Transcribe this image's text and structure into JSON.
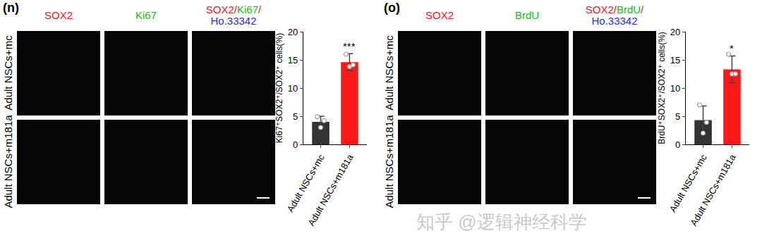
{
  "chart_data": [
    {
      "type": "bar",
      "categories": [
        "Adult NSCs+mc",
        "Adult NSCs+m181a"
      ],
      "values": [
        4.0,
        14.6
      ],
      "errors": [
        1.0,
        1.5
      ],
      "points": [
        [
          4.9,
          3.0,
          4.2
        ],
        [
          16.0,
          13.8,
          14.1
        ]
      ],
      "colors": [
        "#333333",
        "#ff1a1a"
      ],
      "y_label": "Ki67⁺SOX2⁺/SOX2⁺ cells(%)",
      "ylim": [
        0,
        20
      ],
      "yticks": [
        0,
        5,
        10,
        15,
        20
      ],
      "annotations": [
        {
          "category": 1,
          "text": "***"
        }
      ]
    },
    {
      "type": "bar",
      "categories": [
        "Adult NSCs+mc",
        "Adult NSCs+m181a"
      ],
      "values": [
        4.3,
        13.3
      ],
      "errors": [
        2.5,
        2.4
      ],
      "points": [
        [
          7.0,
          2.0,
          3.9
        ],
        [
          16.0,
          12.5,
          12.5
        ]
      ],
      "colors": [
        "#333333",
        "#ff1a1a"
      ],
      "y_label": "BrdU⁺SOX2⁺/SOX2⁺ cells(%)",
      "ylim": [
        0,
        20
      ],
      "yticks": [
        0,
        5,
        10,
        15,
        20
      ],
      "annotations": [
        {
          "category": 1,
          "text": "*"
        }
      ]
    }
  ],
  "panels": [
    {
      "label": "(n)",
      "rows": [
        "Adult NSCs+mc",
        "Adult NSCs+m181a"
      ],
      "columns": [
        [
          [
            {
              "text": "SOX2",
              "color": "#e8202a"
            }
          ]
        ],
        [
          [
            {
              "text": "Ki67",
              "color": "#22b822"
            }
          ]
        ],
        [
          [
            {
              "text": "SOX2/",
              "color": "#e8202a"
            },
            {
              "text": "Ki67",
              "color": "#22b822"
            },
            {
              "text": "/",
              "color": "#e8202a"
            }
          ],
          [
            {
              "text": "Ho.33342",
              "color": "#2f2fc8"
            }
          ]
        ]
      ]
    },
    {
      "label": "(o)",
      "rows": [
        "Adult NSCs+mc",
        "Adult NSCs+m181a"
      ],
      "columns": [
        [
          [
            {
              "text": "SOX2",
              "color": "#e8202a"
            }
          ]
        ],
        [
          [
            {
              "text": "BrdU",
              "color": "#22b822"
            }
          ]
        ],
        [
          [
            {
              "text": "SOX2/",
              "color": "#e8202a"
            },
            {
              "text": "BrdU",
              "color": "#22b822"
            },
            {
              "text": "/",
              "color": "#e8202a"
            }
          ],
          [
            {
              "text": "Ho.33342",
              "color": "#2f2fc8"
            }
          ]
        ]
      ]
    }
  ],
  "watermark": "知乎 @逻辑神经科学"
}
